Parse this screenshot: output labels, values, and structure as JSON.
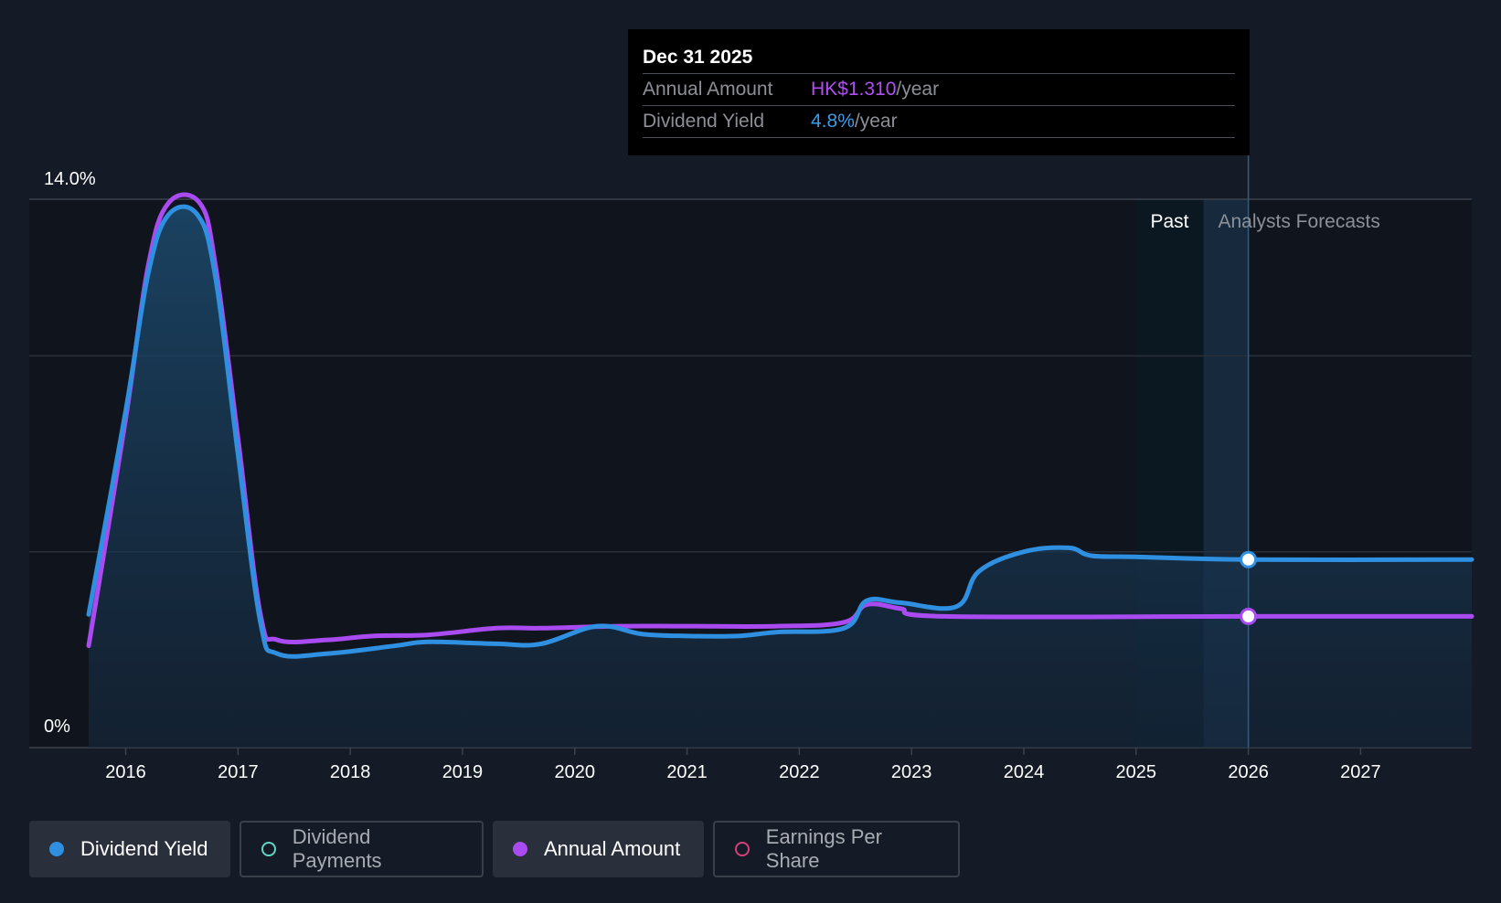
{
  "tooltip": {
    "date": "Dec 31 2025",
    "annual_amount_label": "Annual Amount",
    "annual_amount_value": "HK$1.310",
    "annual_amount_unit": "/year",
    "yield_label": "Dividend Yield",
    "yield_value": "4.8%",
    "yield_unit": "/year"
  },
  "regions": {
    "past": "Past",
    "forecast": "Analysts Forecasts"
  },
  "legend": [
    {
      "label": "Dividend Yield",
      "color": "#2f8fe0",
      "filled": true,
      "active": true
    },
    {
      "label": "Dividend Payments",
      "color": "#5ed6c4",
      "filled": false,
      "active": false
    },
    {
      "label": "Annual Amount",
      "color": "#a94bf0",
      "filled": true,
      "active": true
    },
    {
      "label": "Earnings Per Share",
      "color": "#d6407a",
      "filled": false,
      "active": false
    }
  ],
  "colors": {
    "yield": "#2f8fe0",
    "amount": "#a94bf0",
    "background": "#151b26"
  },
  "chart_data": {
    "type": "line",
    "y_tick_labels": [
      "14.0%",
      "0%"
    ],
    "ylim": [
      0,
      14
    ],
    "xlim": [
      2015.67,
      2027.99
    ],
    "x_ticks": [
      2016,
      2017,
      2018,
      2019,
      2020,
      2021,
      2022,
      2023,
      2024,
      2025,
      2026,
      2027
    ],
    "grid": true,
    "past_forecast_split": 2025.6,
    "highlight_x": 2026.0,
    "series": [
      {
        "name": "Dividend Yield",
        "values": [
          [
            2015.67,
            3.4
          ],
          [
            2016.0,
            8.6
          ],
          [
            2016.2,
            12.1
          ],
          [
            2016.38,
            13.6
          ],
          [
            2016.64,
            13.6
          ],
          [
            2016.8,
            12.0
          ],
          [
            2017.0,
            7.5
          ],
          [
            2017.2,
            3.2
          ],
          [
            2017.35,
            2.4
          ],
          [
            2017.8,
            2.4
          ],
          [
            2018.4,
            2.6
          ],
          [
            2018.7,
            2.7
          ],
          [
            2019.3,
            2.65
          ],
          [
            2019.7,
            2.65
          ],
          [
            2020.2,
            3.1
          ],
          [
            2020.6,
            2.9
          ],
          [
            2021.0,
            2.85
          ],
          [
            2021.45,
            2.85
          ],
          [
            2021.8,
            2.95
          ],
          [
            2022.4,
            3.05
          ],
          [
            2022.6,
            3.75
          ],
          [
            2022.9,
            3.7
          ],
          [
            2023.4,
            3.6
          ],
          [
            2023.6,
            4.5
          ],
          [
            2024.0,
            5.0
          ],
          [
            2024.4,
            5.1
          ],
          [
            2024.6,
            4.9
          ],
          [
            2025.0,
            4.87
          ],
          [
            2026.0,
            4.8
          ],
          [
            2027.99,
            4.8
          ]
        ]
      },
      {
        "name": "Annual Amount",
        "values": [
          [
            2015.67,
            2.6
          ],
          [
            2016.0,
            8.4
          ],
          [
            2016.2,
            12.3
          ],
          [
            2016.38,
            13.9
          ],
          [
            2016.66,
            13.9
          ],
          [
            2016.8,
            12.3
          ],
          [
            2017.0,
            7.9
          ],
          [
            2017.2,
            3.4
          ],
          [
            2017.35,
            2.75
          ],
          [
            2017.8,
            2.75
          ],
          [
            2018.2,
            2.85
          ],
          [
            2018.7,
            2.88
          ],
          [
            2019.3,
            3.05
          ],
          [
            2019.7,
            3.05
          ],
          [
            2020.4,
            3.1
          ],
          [
            2021.0,
            3.1
          ],
          [
            2021.8,
            3.1
          ],
          [
            2022.4,
            3.2
          ],
          [
            2022.6,
            3.65
          ],
          [
            2022.9,
            3.55
          ],
          [
            2023.3,
            3.35
          ],
          [
            2026.0,
            3.35
          ],
          [
            2027.99,
            3.35
          ]
        ]
      }
    ]
  }
}
